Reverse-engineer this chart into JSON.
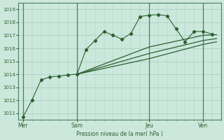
{
  "background_color": "#cce8dc",
  "grid_color": "#a0ccbb",
  "line_color": "#2d6030",
  "text_color": "#2d6030",
  "xlabel_text": "Pression niveau de la mer( hPa )",
  "x_ticks_labels": [
    "Mer",
    "Sam",
    "Jeu",
    "Ven"
  ],
  "x_ticks_pos": [
    0,
    12,
    28,
    40
  ],
  "xlim": [
    -1,
    44
  ],
  "ylim": [
    1010.5,
    1019.5
  ],
  "yticks": [
    1011,
    1012,
    1013,
    1014,
    1015,
    1016,
    1017,
    1018,
    1019
  ],
  "series1_x": [
    0,
    2,
    4,
    6,
    8,
    10,
    12,
    14,
    16,
    18,
    20,
    22,
    24,
    26,
    28,
    30,
    32,
    34,
    36,
    38,
    40,
    42
  ],
  "series1_y": [
    1010.7,
    1012.0,
    1013.55,
    1013.8,
    1013.85,
    1013.95,
    1014.0,
    1015.9,
    1016.6,
    1017.3,
    1017.0,
    1016.7,
    1017.15,
    1018.45,
    1018.55,
    1018.6,
    1018.5,
    1017.5,
    1016.5,
    1017.3,
    1017.3,
    1017.1
  ],
  "series2_x": [
    12,
    28,
    40,
    43
  ],
  "series2_y": [
    1014.0,
    1016.1,
    1017.0,
    1017.05
  ],
  "series3_x": [
    12,
    28,
    40,
    43
  ],
  "series3_y": [
    1014.0,
    1015.6,
    1016.6,
    1016.75
  ],
  "series4_x": [
    12,
    28,
    40,
    43
  ],
  "series4_y": [
    1014.0,
    1015.2,
    1016.3,
    1016.5
  ],
  "vline_positions": [
    0,
    12,
    28,
    40
  ]
}
